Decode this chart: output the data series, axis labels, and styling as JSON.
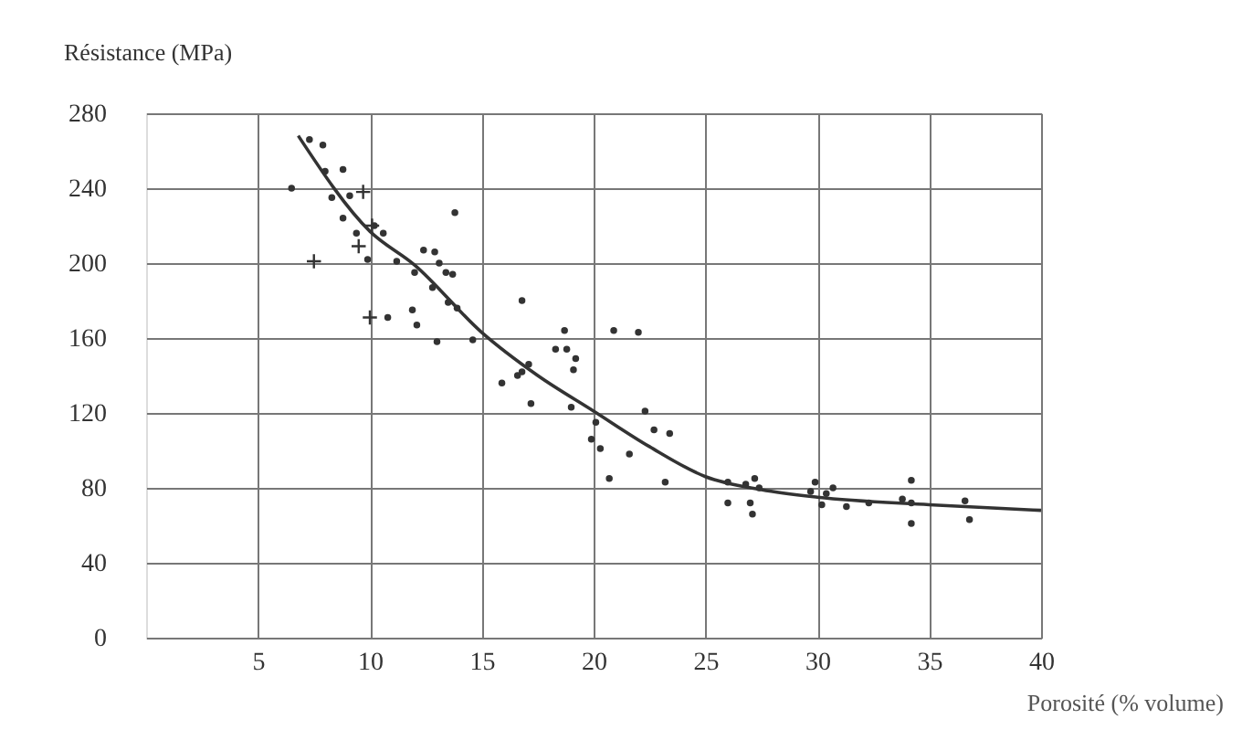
{
  "chart_data": {
    "type": "scatter",
    "ylabel": "Résistance (MPa)",
    "xlabel": "Porosité (% volume)",
    "xlim": [
      0,
      40
    ],
    "ylim": [
      0,
      280
    ],
    "xticks": [
      5,
      10,
      15,
      20,
      25,
      30,
      35,
      40
    ],
    "yticks": [
      0,
      40,
      80,
      120,
      160,
      200,
      240,
      280
    ],
    "grid": true,
    "series": [
      {
        "marker": "circle",
        "color": "#333333",
        "x": [
          6.5,
          7.3,
          7.9,
          8.0,
          8.8,
          8.3,
          9.1,
          8.8,
          9.4,
          9.9,
          10.2,
          10.6,
          11.2,
          12.0,
          12.4,
          12.9,
          13.1,
          13.4,
          13.7,
          13.8,
          12.8,
          11.9,
          12.1,
          13.5,
          13.9,
          13.0,
          14.6,
          10.8,
          16.8,
          15.9,
          18.7,
          20.9,
          22.0,
          18.3,
          18.8,
          19.2,
          19.1,
          17.1,
          16.8,
          16.6,
          17.2,
          19.0,
          22.3,
          20.1,
          22.7,
          23.4,
          19.9,
          20.3,
          21.6,
          20.7,
          23.2,
          26.0,
          26.0,
          26.8,
          27.2,
          27.4,
          27.0,
          27.1,
          29.7,
          29.9,
          30.2,
          30.4,
          30.7,
          31.3,
          32.3,
          33.8,
          34.2,
          34.2,
          34.2,
          36.6,
          36.8
        ],
        "values": [
          240,
          266,
          263,
          249,
          250,
          235,
          236,
          224,
          216,
          202,
          220,
          216,
          201,
          195,
          207,
          206,
          200,
          195,
          194,
          227,
          187,
          175,
          167,
          179,
          176,
          158,
          159,
          171,
          180,
          136,
          164,
          164,
          163,
          154,
          154,
          149,
          143,
          146,
          142,
          140,
          125,
          123,
          121,
          115,
          111,
          109,
          106,
          101,
          98,
          85,
          83,
          83,
          72,
          82,
          85,
          80,
          72,
          66,
          78,
          83,
          71,
          77,
          80,
          70,
          72,
          74,
          84,
          72,
          61,
          73,
          63
        ]
      },
      {
        "marker": "cross",
        "color": "#333333",
        "x": [
          7.5,
          9.7,
          9.5,
          10.1,
          10.0
        ],
        "values": [
          201,
          238,
          209,
          220,
          171
        ]
      },
      {
        "type": "line",
        "marker": "none",
        "color": "#333333",
        "x": [
          6.8,
          10,
          12,
          15,
          17.5,
          20,
          22.5,
          25,
          27.5,
          30,
          35,
          40
        ],
        "values": [
          268,
          217,
          199,
          163,
          140,
          121,
          102,
          86,
          79,
          75,
          71,
          68
        ]
      }
    ]
  }
}
